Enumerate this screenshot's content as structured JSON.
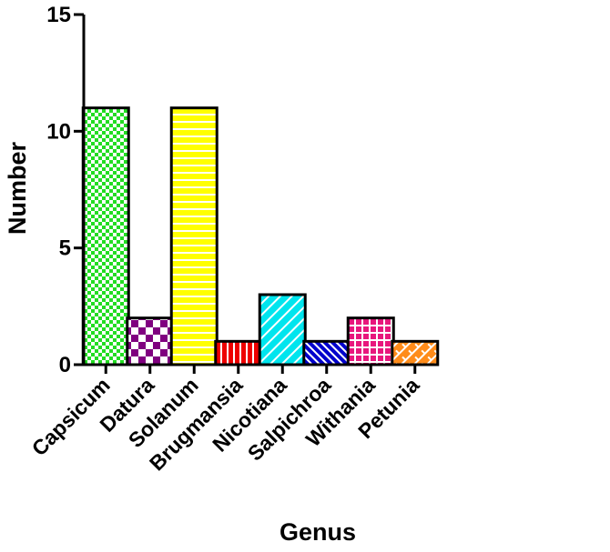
{
  "chart_data": {
    "type": "bar",
    "title": "",
    "xlabel": "Genus",
    "ylabel": "Number",
    "ylim": [
      0,
      15
    ],
    "yticks": [
      0,
      5,
      10,
      15
    ],
    "grid": false,
    "categories": [
      "Capsicum",
      "Datura",
      "Solanum",
      "Brugmansia",
      "Nicotiana",
      "Salpichroa",
      "Withania",
      "Petunia"
    ],
    "values": [
      11,
      2,
      11,
      1,
      3,
      1,
      2,
      1
    ],
    "bar_styles": [
      {
        "color": "#22dd22",
        "pattern": "checker-fine"
      },
      {
        "color": "#800080",
        "pattern": "checker-coarse"
      },
      {
        "color": "#ffff00",
        "pattern": "horizontal-lines"
      },
      {
        "color": "#ee0000",
        "pattern": "vertical-lines"
      },
      {
        "color": "#00e5ee",
        "pattern": "diagonal-lines"
      },
      {
        "color": "#0000cc",
        "pattern": "diagonal-lines-dense"
      },
      {
        "color": "#e8177d",
        "pattern": "grid"
      },
      {
        "color": "#ff8c1a",
        "pattern": "brick-diagonal"
      }
    ]
  }
}
